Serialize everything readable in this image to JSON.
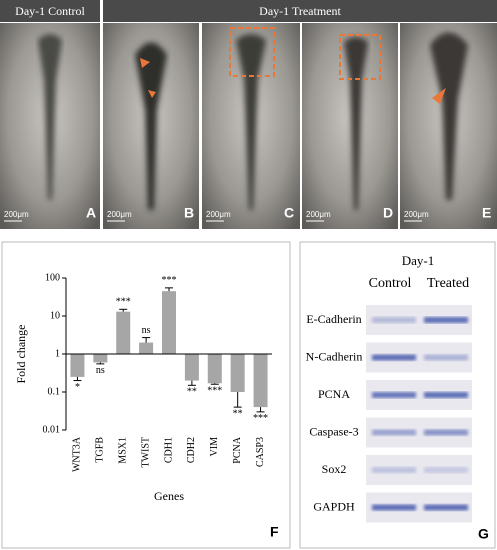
{
  "top": {
    "control_header": "Day-1 Control",
    "treatment_header": "Day-1 Treatment",
    "images": [
      {
        "scale": "200μm",
        "letter": "A"
      },
      {
        "scale": "200μm",
        "letter": "B"
      },
      {
        "scale": "200μm",
        "letter": "C"
      },
      {
        "scale": "200μm",
        "letter": "D"
      },
      {
        "scale": "200μm",
        "letter": "E"
      }
    ]
  },
  "chart_data": {
    "type": "bar",
    "ylabel": "Fold change",
    "xlabel": "Genes",
    "panel_letter": "F",
    "categories": [
      "WNT3A",
      "TGFB",
      "MSX1",
      "TWIST",
      "CDH1",
      "CDH2",
      "VIM",
      "PCNA",
      "CASP3"
    ],
    "values": [
      0.25,
      0.6,
      13,
      2,
      45,
      0.2,
      0.17,
      0.1,
      0.04
    ],
    "errors": [
      0.05,
      0.05,
      2,
      0.7,
      10,
      0.05,
      0.01,
      0.06,
      0.01
    ],
    "significance": [
      "*",
      "ns",
      "***",
      "ns",
      "***",
      "**",
      "***",
      "**",
      "***"
    ],
    "color": "#a6a6a6",
    "log_scale": true,
    "baseline": 1,
    "ylim": [
      0.01,
      100
    ],
    "yticks": [
      0.01,
      0.1,
      1,
      10,
      100
    ]
  },
  "blot": {
    "title": "Day-1",
    "columns": [
      "Control",
      "Treated"
    ],
    "rows": [
      "E-Cadherin",
      "N-Cadherin",
      "PCNA",
      "Caspase-3",
      "Sox2",
      "GAPDH"
    ],
    "panel_letter": "G"
  }
}
